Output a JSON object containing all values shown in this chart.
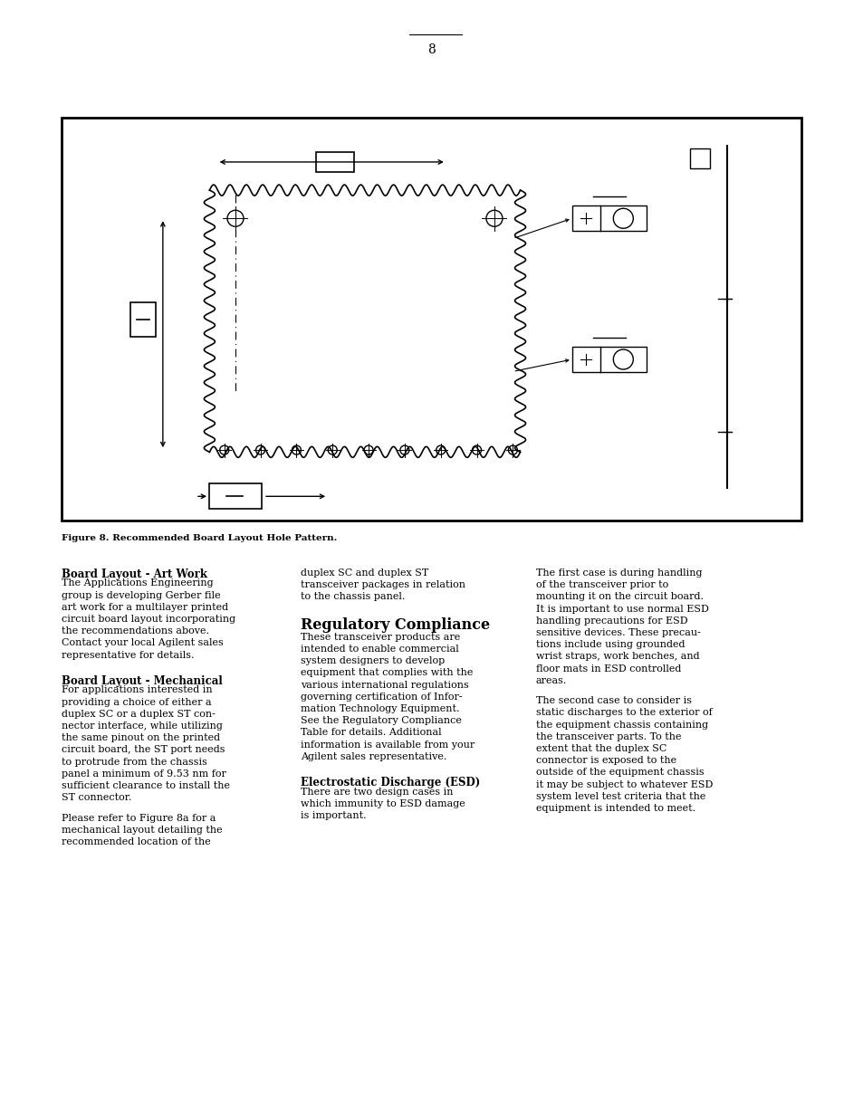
{
  "page_number": "8",
  "figure_caption": "Figure 8. Recommended Board Layout Hole Pattern.",
  "bg_color": "#ffffff",
  "text_color": "#000000",
  "sections": [
    {
      "title": "Board Layout - Art Work",
      "body": "The Applications Engineering\ngroup is developing Gerber file\nart work for a multilayer printed\ncircuit board layout incorporating\nthe recommendations above.\nContact your local Agilent sales\nrepresentative for details."
    },
    {
      "title": "Board Layout - Mechanical",
      "body": "For applications interested in\nproviding a choice of either a\nduplex SC or a duplex ST con-\nnector interface, while utilizing\nthe same pinout on the printed\ncircuit board, the ST port needs\nto protrude from the chassis\npanel a minimum of 9.53 nm for\nsufficient clearance to install the\nST connector.\n\nPlease refer to Figure 8a for a\nmechanical layout detailing the\nrecommended location of the"
    },
    {
      "title": "",
      "body": "duplex SC and duplex ST\ntransceiver packages in relation\nto the chassis panel."
    },
    {
      "title": "Regulatory Compliance",
      "body": "These transceiver products are\nintended to enable commercial\nsystem designers to develop\nequipment that complies with the\nvarious international regulations\ngoverning certification of Infor-\nmation Technology Equipment.\nSee the Regulatory Compliance\nTable for details. Additional\ninformation is available from your\nAgilent sales representative."
    },
    {
      "title": "Electrostatic Discharge (ESD)",
      "body": "There are two design cases in\nwhich immunity to ESD damage\nis important."
    },
    {
      "title": "",
      "body": "The first case is during handling\nof the transceiver prior to\nmounting it on the circuit board.\nIt is important to use normal ESD\nhandling precautions for ESD\nsensitive devices. These precau-\ntions include using grounded\nwrist straps, work benches, and\nfloor mats in ESD controlled\nareas.\n\nThe second case to consider is\nstatic discharges to the exterior of\nthe equipment chassis containing\nthe transceiver parts. To the\nextent that the duplex SC\nconnector is exposed to the\noutside of the equipment chassis\nit may be subject to whatever ESD\nsystem level test criteria that the\nequipment is intended to meet."
    }
  ]
}
